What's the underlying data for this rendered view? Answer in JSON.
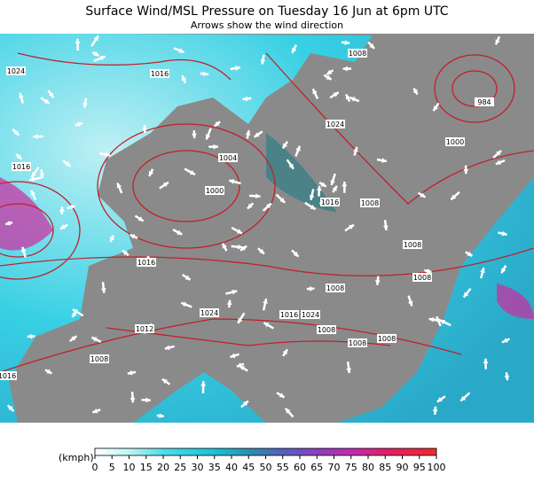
{
  "header": {
    "title": "Surface Wind/MSL Pressure on Tuesday 16 Jun at 6pm UTC",
    "subtitle": "Arrows show the wind direction"
  },
  "isobar_labels": [
    "1024",
    "1016",
    "1016",
    "1000",
    "1016",
    "1008",
    "1016",
    "1024",
    "1008",
    "1000",
    "984",
    "1008",
    "1008",
    "1008",
    "1024",
    "1016",
    "1024",
    "1008",
    "1008",
    "1008",
    "1008",
    "1016",
    "1004",
    "1012"
  ],
  "legend": {
    "unit": "(kmph)",
    "ticks": [
      "0",
      "5",
      "10",
      "15",
      "20",
      "25",
      "30",
      "35",
      "40",
      "45",
      "50",
      "55",
      "60",
      "65",
      "70",
      "75",
      "80",
      "85",
      "90",
      "95",
      "100"
    ]
  }
}
